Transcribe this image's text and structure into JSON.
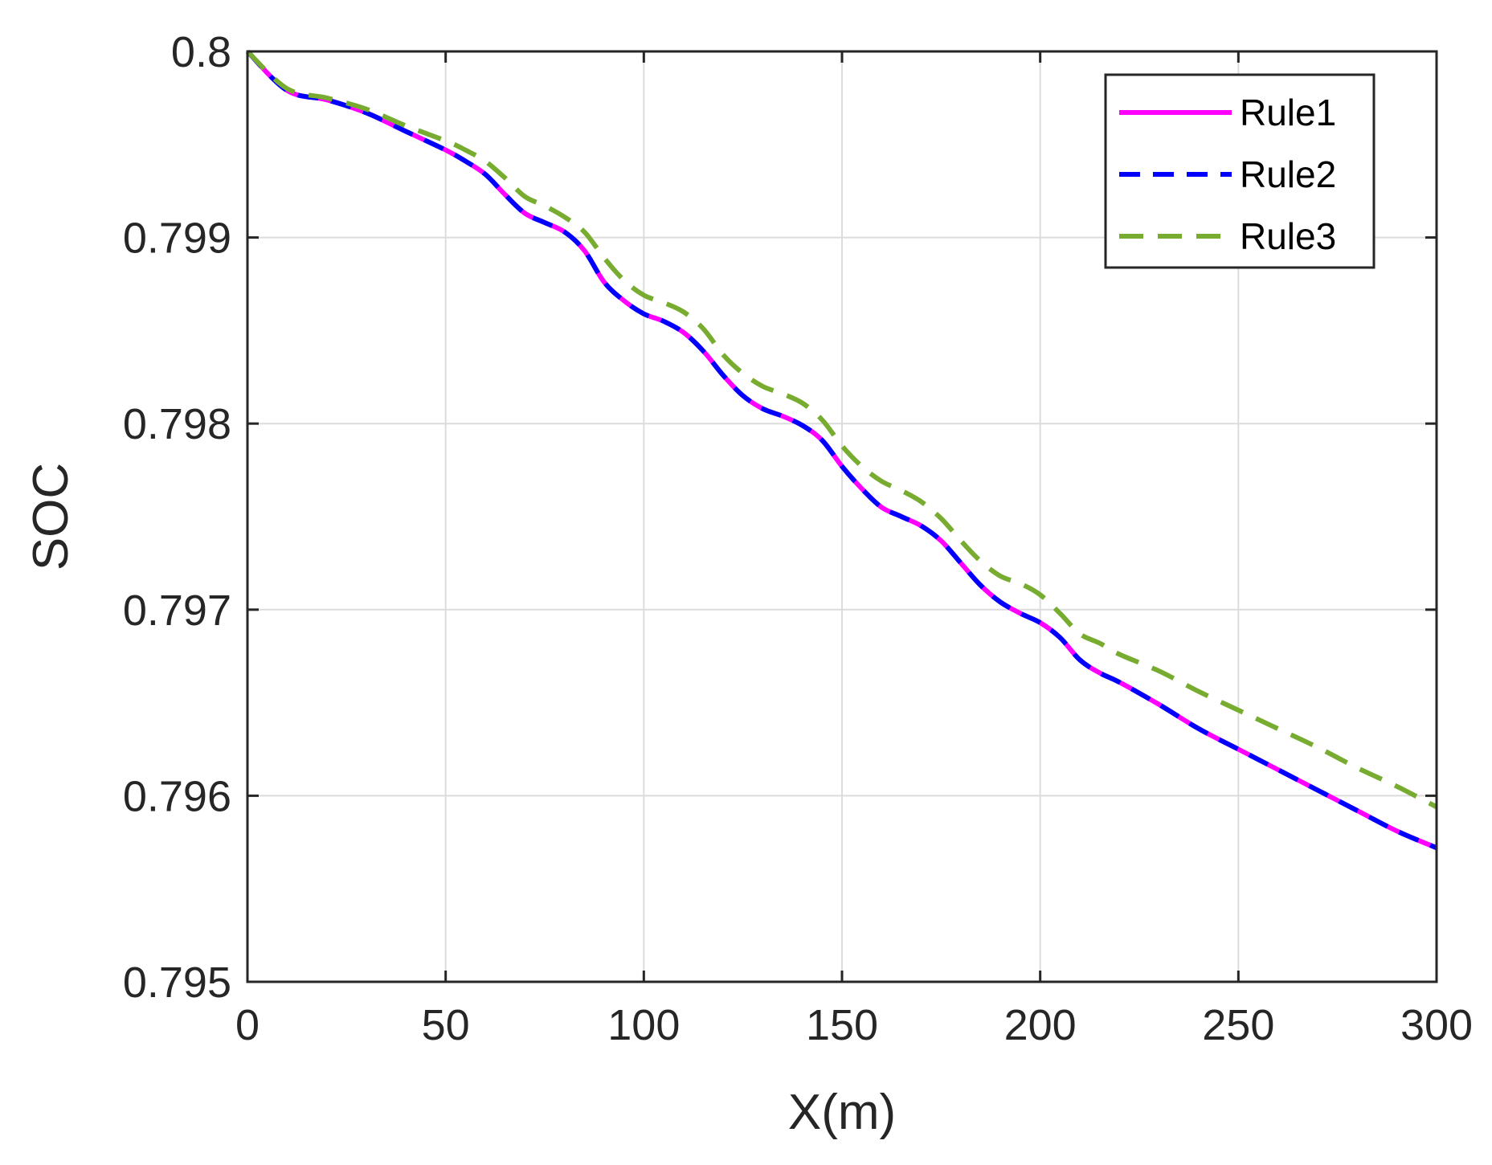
{
  "chart_data": {
    "type": "line",
    "xlabel": "X(m)",
    "ylabel": "SOC",
    "xlim": [
      0,
      300
    ],
    "ylim": [
      0.795,
      0.8
    ],
    "xticks": [
      0,
      50,
      100,
      150,
      200,
      250,
      300
    ],
    "xtick_labels": [
      "0",
      "50",
      "100",
      "150",
      "200",
      "250",
      "300"
    ],
    "yticks": [
      0.795,
      0.796,
      0.797,
      0.798,
      0.799,
      0.8
    ],
    "ytick_labels": [
      "0.795",
      "0.796",
      "0.797",
      "0.798",
      "0.799",
      "0.8"
    ],
    "grid": true,
    "legend_position": "top-right",
    "series": [
      {
        "name": "Rule1",
        "color": "#ff00ff",
        "style": "solid",
        "x": [
          0,
          10,
          20,
          30,
          40,
          50,
          55,
          60,
          65,
          70,
          75,
          80,
          85,
          90,
          95,
          100,
          105,
          110,
          115,
          120,
          125,
          130,
          135,
          140,
          145,
          150,
          155,
          160,
          165,
          170,
          175,
          180,
          185,
          190,
          195,
          200,
          205,
          210,
          215,
          220,
          230,
          240,
          250,
          260,
          270,
          280,
          290,
          300
        ],
        "y": [
          0.8,
          0.79979,
          0.79974,
          0.79967,
          0.79957,
          0.79947,
          0.79941,
          0.79934,
          0.79923,
          0.79913,
          0.79908,
          0.79903,
          0.79893,
          0.79876,
          0.79866,
          0.79859,
          0.79855,
          0.79849,
          0.79839,
          0.79826,
          0.79815,
          0.79808,
          0.79804,
          0.79799,
          0.79791,
          0.79777,
          0.79765,
          0.79755,
          0.7975,
          0.79745,
          0.79737,
          0.79725,
          0.79713,
          0.79704,
          0.79698,
          0.79693,
          0.79685,
          0.79673,
          0.79666,
          0.79661,
          0.79649,
          0.79636,
          0.79625,
          0.79614,
          0.79603,
          0.79592,
          0.79581,
          0.79572
        ]
      },
      {
        "name": "Rule2",
        "color": "#0000ff",
        "style": "dashed",
        "x": [
          0,
          10,
          20,
          30,
          40,
          50,
          55,
          60,
          65,
          70,
          75,
          80,
          85,
          90,
          95,
          100,
          105,
          110,
          115,
          120,
          125,
          130,
          135,
          140,
          145,
          150,
          155,
          160,
          165,
          170,
          175,
          180,
          185,
          190,
          195,
          200,
          205,
          210,
          215,
          220,
          230,
          240,
          250,
          260,
          270,
          280,
          290,
          300
        ],
        "y": [
          0.8,
          0.79979,
          0.79974,
          0.79967,
          0.79957,
          0.79947,
          0.79941,
          0.79934,
          0.79923,
          0.79913,
          0.79908,
          0.79903,
          0.79893,
          0.79876,
          0.79866,
          0.79859,
          0.79855,
          0.79849,
          0.79839,
          0.79826,
          0.79815,
          0.79808,
          0.79804,
          0.79799,
          0.79791,
          0.79777,
          0.79765,
          0.79755,
          0.7975,
          0.79745,
          0.79737,
          0.79725,
          0.79713,
          0.79704,
          0.79698,
          0.79693,
          0.79685,
          0.79673,
          0.79666,
          0.79661,
          0.79649,
          0.79636,
          0.79625,
          0.79614,
          0.79603,
          0.79592,
          0.79581,
          0.79572
        ]
      },
      {
        "name": "Rule3",
        "color": "#77ac30",
        "style": "dashed",
        "x": [
          0,
          10,
          20,
          30,
          40,
          50,
          55,
          60,
          65,
          70,
          75,
          80,
          85,
          90,
          95,
          100,
          105,
          110,
          115,
          120,
          125,
          130,
          135,
          140,
          145,
          150,
          155,
          160,
          165,
          170,
          175,
          180,
          185,
          190,
          195,
          200,
          205,
          210,
          215,
          220,
          230,
          240,
          250,
          260,
          270,
          280,
          290,
          300
        ],
        "y": [
          0.8,
          0.7998,
          0.79975,
          0.79969,
          0.7996,
          0.79952,
          0.79947,
          0.79941,
          0.79932,
          0.79922,
          0.79917,
          0.79911,
          0.79903,
          0.79889,
          0.79877,
          0.79869,
          0.79865,
          0.7986,
          0.79851,
          0.79837,
          0.79827,
          0.7982,
          0.79816,
          0.79811,
          0.79802,
          0.79788,
          0.79777,
          0.79769,
          0.79764,
          0.79758,
          0.79749,
          0.79737,
          0.79726,
          0.79718,
          0.79714,
          0.79708,
          0.79698,
          0.79687,
          0.79682,
          0.79676,
          0.79667,
          0.79656,
          0.79646,
          0.79636,
          0.79626,
          0.79615,
          0.79605,
          0.79594
        ]
      }
    ]
  }
}
